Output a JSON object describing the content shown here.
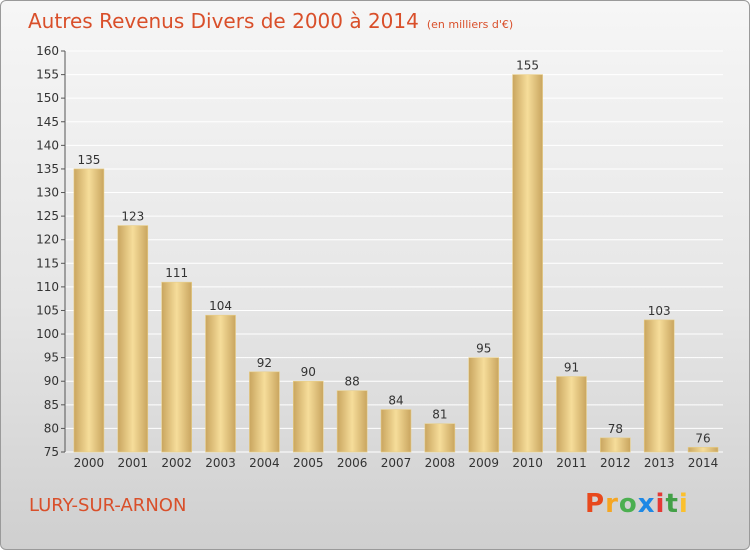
{
  "title": "Autres Revenus Divers de 2000 à 2014",
  "subtitle": "(en milliers d'€)",
  "location": "LURY-SUR-ARNON",
  "logo": {
    "text": "Proxiti",
    "letters": [
      {
        "ch": "P",
        "color": "#e8491d"
      },
      {
        "ch": "r",
        "color": "#f5a623"
      },
      {
        "ch": "o",
        "color": "#4caf50"
      },
      {
        "ch": "x",
        "color": "#1e88e5"
      },
      {
        "ch": "i",
        "color": "#e53935"
      },
      {
        "ch": "t",
        "color": "#43a047"
      },
      {
        "ch": "i",
        "color": "#fbc02d"
      }
    ]
  },
  "colors": {
    "accent": "#d94f2a",
    "bar_light": "#f6dd9a",
    "bar_dark": "#c9a55f"
  },
  "chart_data": {
    "type": "bar",
    "categories": [
      "2000",
      "2001",
      "2002",
      "2003",
      "2004",
      "2005",
      "2006",
      "2007",
      "2008",
      "2009",
      "2010",
      "2011",
      "2012",
      "2013",
      "2014"
    ],
    "values": [
      135,
      123,
      111,
      104,
      92,
      90,
      88,
      84,
      81,
      95,
      155,
      91,
      78,
      103,
      76
    ],
    "title": "Autres Revenus Divers de 2000 à 2014",
    "subtitle": "(en milliers d'€)",
    "ylim": [
      75,
      160
    ],
    "yticks": [
      75,
      80,
      85,
      90,
      95,
      100,
      105,
      110,
      115,
      120,
      125,
      130,
      135,
      140,
      145,
      150,
      155,
      160
    ],
    "grid": true,
    "data_labels": true
  }
}
